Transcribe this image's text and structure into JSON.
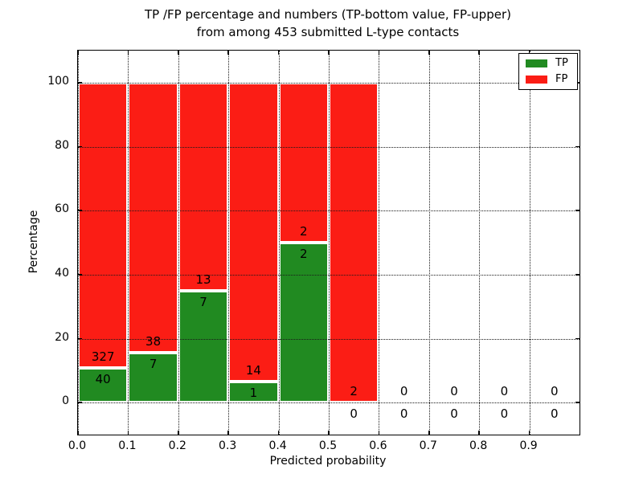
{
  "figure": {
    "title_line1": "TP /FP percentage and numbers (TP-bottom value, FP-upper)",
    "title_line2": "from among 453 submitted L-type contacts",
    "xlabel": "Predicted probability",
    "ylabel": "Percentage"
  },
  "chart_data": {
    "type": "bar",
    "stacked": true,
    "title": "TP /FP percentage and numbers (TP-bottom value, FP-upper)\nfrom among 453 submitted L-type contacts",
    "xlabel": "Predicted probability",
    "ylabel": "Percentage",
    "total_submitted": 453,
    "xlim": [
      0,
      1
    ],
    "ylim_display": [
      -10,
      110
    ],
    "yticks": [
      0,
      20,
      40,
      60,
      80,
      100
    ],
    "xticks": [
      0,
      0.1,
      0.2,
      0.3,
      0.4,
      0.5,
      0.6,
      0.7,
      0.8,
      0.9
    ],
    "xtick_labels": [
      "0.0",
      "0.1",
      "0.2",
      "0.3",
      "0.4",
      "0.5",
      "0.6",
      "0.7",
      "0.8",
      "0.9"
    ],
    "bin_starts": [
      0,
      0.1,
      0.2,
      0.3,
      0.4,
      0.5,
      0.6,
      0.7,
      0.8,
      0.9
    ],
    "bin_width": 0.1,
    "grid": "dotted",
    "legend_position": "upper right",
    "series": [
      {
        "name": "TP",
        "color": "#218a21",
        "counts": [
          40,
          7,
          7,
          1,
          2,
          0,
          0,
          0,
          0,
          0
        ],
        "pct": [
          10.9,
          15.56,
          35.0,
          6.67,
          50.0,
          0,
          0,
          0,
          0,
          0
        ]
      },
      {
        "name": "FP",
        "color": "#fb1d15",
        "counts": [
          327,
          38,
          13,
          14,
          2,
          2,
          0,
          0,
          0,
          0
        ],
        "pct": [
          89.1,
          84.44,
          65.0,
          93.33,
          50.0,
          100.0,
          0,
          0,
          0,
          0
        ]
      }
    ]
  }
}
